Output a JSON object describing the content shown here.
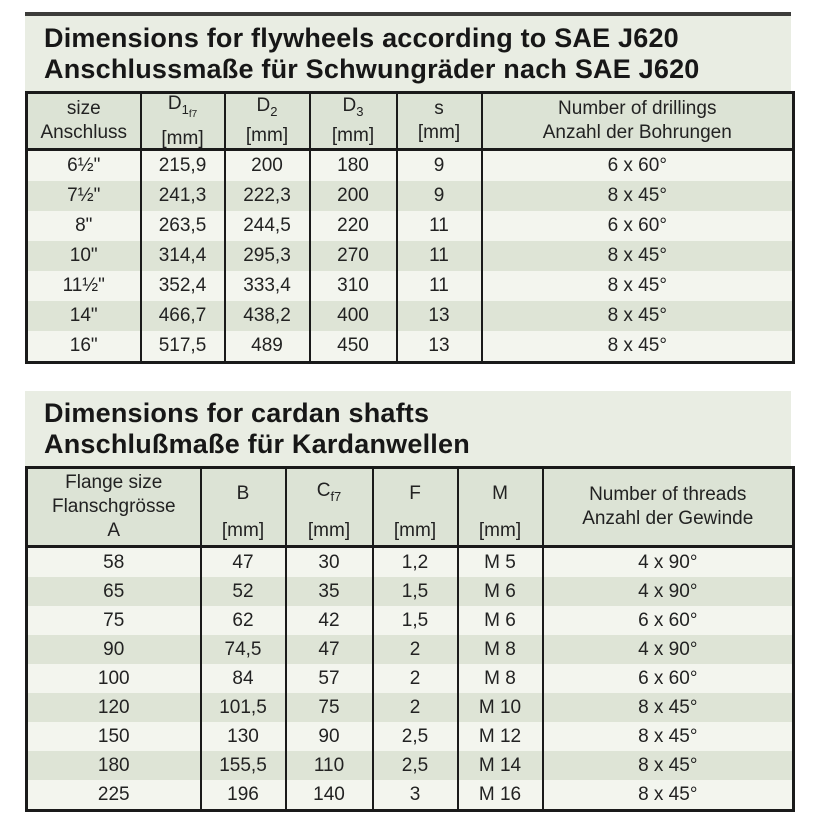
{
  "flywheel_table": {
    "title_en": "Dimensions for flywheels according to SAE J620",
    "title_de": "Anschlussmaße für Schwungräder nach SAE J620",
    "headers": {
      "size": {
        "line1": "size",
        "line2": "Anschluss"
      },
      "d1": {
        "sym": "D",
        "sub": "1",
        "subsub": "f7",
        "unit": "[mm]"
      },
      "d2": {
        "sym": "D",
        "sub": "2",
        "unit": "[mm]"
      },
      "d3": {
        "sym": "D",
        "sub": "3",
        "unit": "[mm]"
      },
      "s": {
        "sym": "s",
        "unit": "[mm]"
      },
      "drillings": {
        "line1": "Number of drillings",
        "line2": "Anzahl der Bohrungen"
      }
    },
    "rows": [
      [
        "6½\"",
        "215,9",
        "200",
        "180",
        "9",
        "6 x 60°"
      ],
      [
        "7½\"",
        "241,3",
        "222,3",
        "200",
        "9",
        "8 x 45°"
      ],
      [
        "8\"",
        "263,5",
        "244,5",
        "220",
        "11",
        "6 x 60°"
      ],
      [
        "10\"",
        "314,4",
        "295,3",
        "270",
        "11",
        "8 x 45°"
      ],
      [
        "11½\"",
        "352,4",
        "333,4",
        "310",
        "11",
        "8 x 45°"
      ],
      [
        "14\"",
        "466,7",
        "438,2",
        "400",
        "13",
        "8 x 45°"
      ],
      [
        "16\"",
        "517,5",
        "489",
        "450",
        "13",
        "8 x 45°"
      ]
    ]
  },
  "cardan_table": {
    "title_en": "Dimensions for cardan shafts",
    "title_de": "Anschlußmaße für Kardanwellen",
    "headers": {
      "flange": {
        "line1": "Flange size",
        "line2": "Flanschgrösse",
        "line3": "A"
      },
      "b": {
        "sym": "B",
        "unit": "[mm]"
      },
      "c": {
        "sym": "C",
        "sub": "f7",
        "unit": "[mm]"
      },
      "f": {
        "sym": "F",
        "unit": "[mm]"
      },
      "m": {
        "sym": "M",
        "unit": "[mm]"
      },
      "threads": {
        "line1": "Number of threads",
        "line2": "Anzahl der Gewinde"
      }
    },
    "rows": [
      [
        "58",
        "47",
        "30",
        "1,2",
        "M 5",
        "4 x 90°"
      ],
      [
        "65",
        "52",
        "35",
        "1,5",
        "M 6",
        "4 x 90°"
      ],
      [
        "75",
        "62",
        "42",
        "1,5",
        "M 6",
        "6 x 60°"
      ],
      [
        "90",
        "74,5",
        "47",
        "2",
        "M 8",
        "4 x 90°"
      ],
      [
        "100",
        "84",
        "57",
        "2",
        "M 8",
        "6 x 60°"
      ],
      [
        "120",
        "101,5",
        "75",
        "2",
        "M 10",
        "8 x 45°"
      ],
      [
        "150",
        "130",
        "90",
        "2,5",
        "M 12",
        "8 x 45°"
      ],
      [
        "180",
        "155,5",
        "110",
        "2,5",
        "M 14",
        "8 x 45°"
      ],
      [
        "225",
        "196",
        "140",
        "3",
        "M 16",
        "8 x 45°"
      ]
    ]
  },
  "colors": {
    "page_bg": "#ffffff",
    "title_block_bg": "#e9ede3",
    "header_bg": "#dce3d5",
    "row_light": "#f3f5ee",
    "row_dark": "#dee4d6",
    "table_border": "#1a1a1a",
    "top_rule": "#3c3c3a",
    "text": "#1c1c1c"
  }
}
